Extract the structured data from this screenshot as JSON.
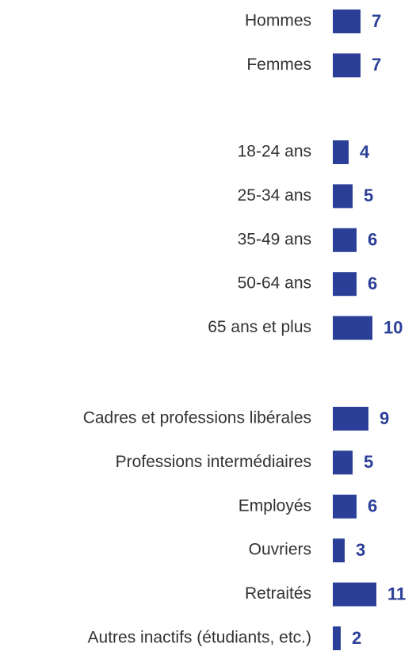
{
  "chart_data": [
    {
      "type": "bar",
      "orientation": "horizontal",
      "color": "#2b3f98",
      "categories": [
        "Hommes",
        "Femmes"
      ],
      "values": [
        7,
        7
      ]
    },
    {
      "type": "bar",
      "orientation": "horizontal",
      "color": "#2b3f98",
      "categories": [
        "18-24 ans",
        "25-34 ans",
        "35-49 ans",
        "50-64 ans",
        "65 ans et plus"
      ],
      "values": [
        4,
        5,
        6,
        6,
        10
      ]
    },
    {
      "type": "bar",
      "orientation": "horizontal",
      "color": "#2b3f98",
      "categories": [
        "Cadres et professions libérales",
        "Professions intermédiaires",
        "Employés",
        "Ouvriers",
        "Retraités",
        "Autres inactifs (étudiants, etc.)"
      ],
      "values": [
        9,
        5,
        6,
        3,
        11,
        2
      ]
    }
  ]
}
